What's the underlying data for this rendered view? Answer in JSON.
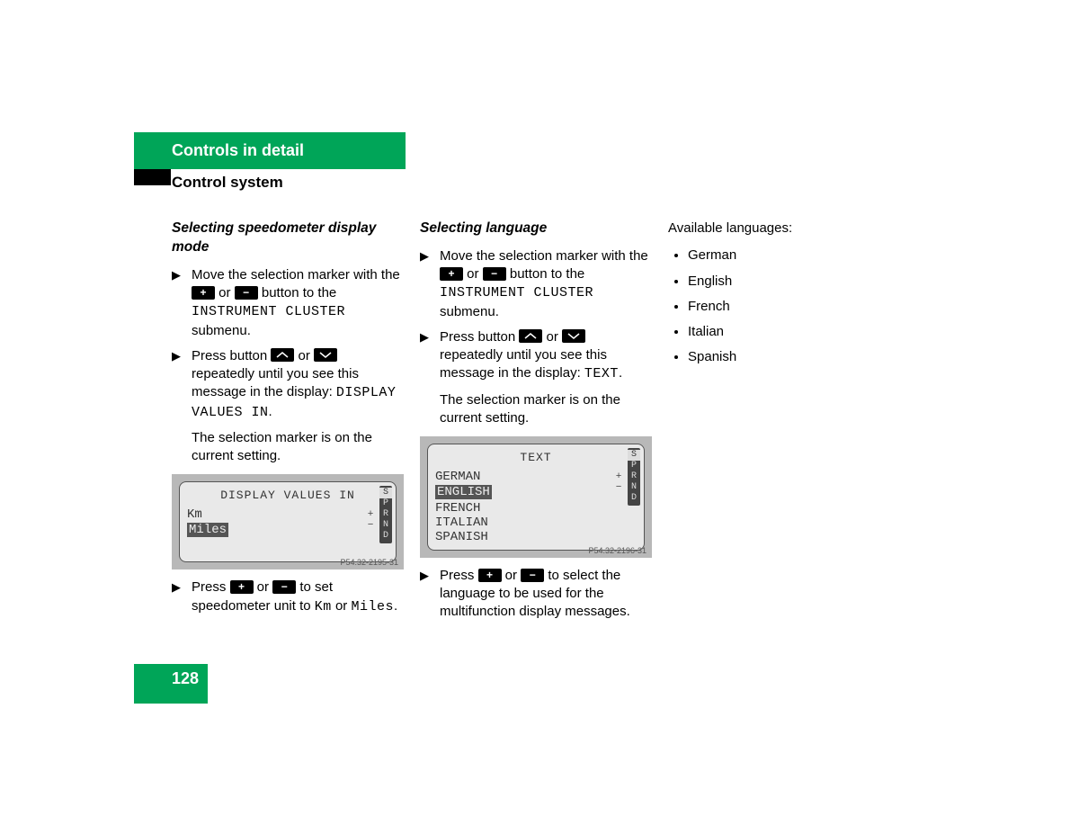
{
  "header": {
    "title": "Controls in detail",
    "subtitle": "Control system",
    "accent_color": "#00a558"
  },
  "page_number": "128",
  "col1": {
    "heading": "Selecting speedometer display mode",
    "step1_pre": "Move the selection marker with the ",
    "step1_mid": " or ",
    "step1_post": " button to the ",
    "step1_mono": "INSTRUMENT CLUSTER",
    "step1_end": " submenu.",
    "step2_pre": "Press button ",
    "step2_mid": " or ",
    "step2_post": " repeatedly until you see this message in the display: ",
    "step2_mono": "DISPLAY VALUES IN",
    "step2_end": ".",
    "note": "The selection marker is on the current setting.",
    "figure": {
      "title": "DISPLAY VALUES IN",
      "rows": [
        "Km",
        "Miles"
      ],
      "selected_index": 1,
      "gear": [
        "S",
        "P",
        "R",
        "N",
        "D"
      ],
      "gear_highlight": 0,
      "caption": "P54.32-2195-31"
    },
    "step3_pre": "Press ",
    "step3_mid": " or ",
    "step3_post": " to set speedometer unit to ",
    "step3_mono1": "Km",
    "step3_join": " or ",
    "step3_mono2": "Miles",
    "step3_end": "."
  },
  "col2": {
    "heading": "Selecting language",
    "step1_pre": "Move the selection marker with the ",
    "step1_mid": " or ",
    "step1_post": " button to the ",
    "step1_mono": "INSTRUMENT CLUSTER",
    "step1_end": " submenu.",
    "step2_pre": "Press button ",
    "step2_mid": " or ",
    "step2_post": " repeatedly until you see this message in the display: ",
    "step2_mono": "TEXT",
    "step2_end": ".",
    "note": "The selection marker is on the current setting.",
    "figure": {
      "title": "TEXT",
      "rows": [
        "GERMAN",
        "ENGLISH",
        "FRENCH",
        "ITALIAN",
        "SPANISH"
      ],
      "selected_index": 1,
      "gear": [
        "S",
        "P",
        "R",
        "N",
        "D"
      ],
      "gear_highlight": 0,
      "caption": "P54.32-2196-31"
    },
    "step3_pre": "Press ",
    "step3_mid": " or ",
    "step3_post": " to select the language to be used for the multifunction display messages."
  },
  "col3": {
    "heading": "Available languages:",
    "items": [
      "German",
      "English",
      "French",
      "Italian",
      "Spanish"
    ]
  }
}
